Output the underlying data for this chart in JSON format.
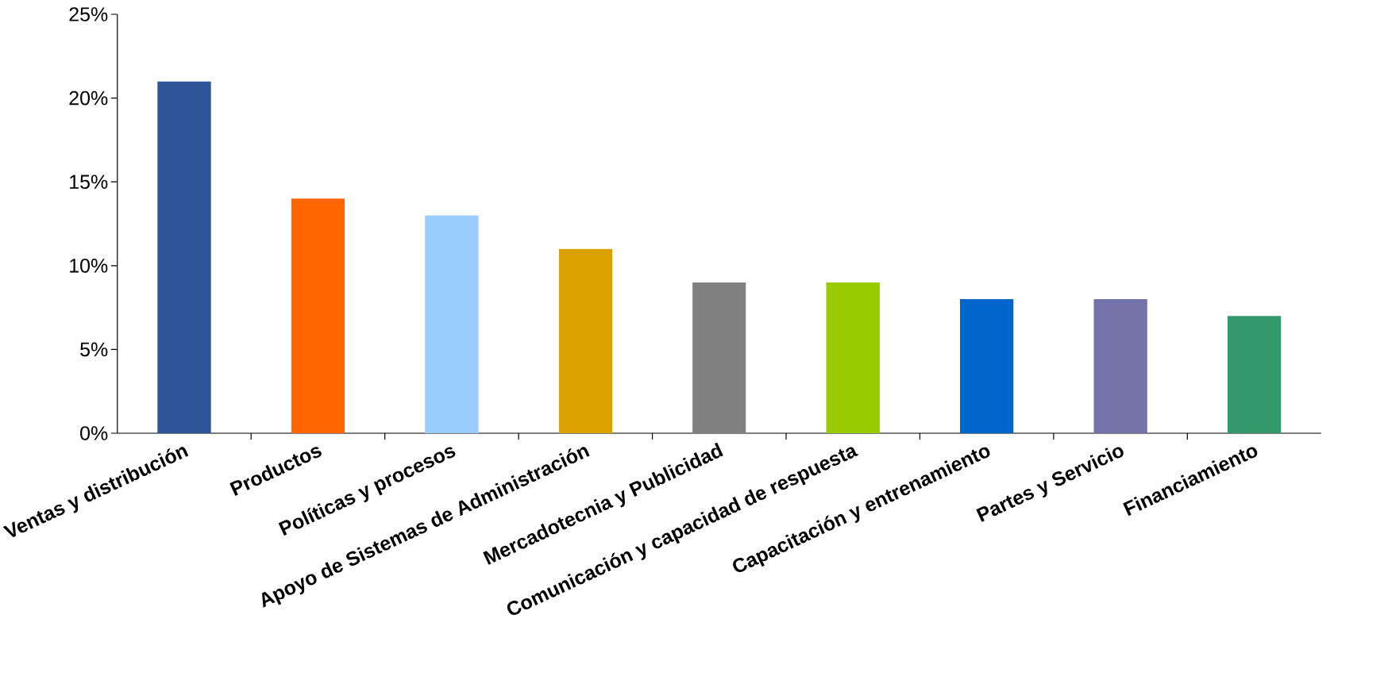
{
  "chart_data": {
    "type": "bar",
    "categories": [
      "Ventas y distribución",
      "Productos",
      "Políticas y procesos",
      "Apoyo de Sistemas de Administración",
      "Mercadotecnia y Publicidad",
      "Comunicación y capacidad de respuesta",
      "Capacitación y entrenamiento",
      "Partes y Servicio",
      "Financiamiento"
    ],
    "values": [
      21,
      14,
      13,
      11,
      9,
      9,
      8,
      8,
      7
    ],
    "colors": [
      "#2e5597",
      "#ff6600",
      "#99ccff",
      "#dba100",
      "#808080",
      "#99cc00",
      "#0066cc",
      "#7373a9",
      "#33996a"
    ],
    "ylim": [
      0,
      25
    ],
    "yticks": [
      {
        "value": 0,
        "label": "0%"
      },
      {
        "value": 5,
        "label": "5%"
      },
      {
        "value": 10,
        "label": "10%"
      },
      {
        "value": 15,
        "label": "15%"
      },
      {
        "value": 20,
        "label": "20%"
      },
      {
        "value": 25,
        "label": "25%"
      }
    ]
  }
}
